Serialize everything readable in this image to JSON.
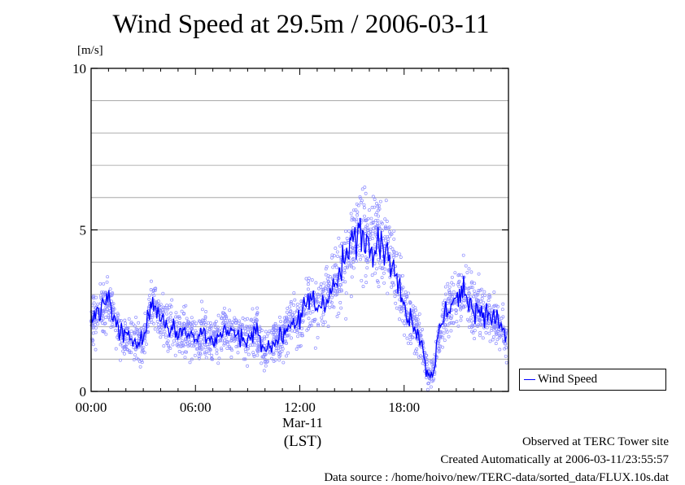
{
  "chart_data": {
    "type": "line",
    "title": "Wind Speed at 29.5m / 2006-03-11",
    "ylabel": "[m/s]",
    "xlabel_date": "Mar-11",
    "xlabel_tz": "(LST)",
    "x_unit": "hours (LST)",
    "ylim": [
      0,
      10
    ],
    "xlim": [
      0,
      24
    ],
    "y_ticks": [
      0,
      5,
      10
    ],
    "x_ticks": [
      {
        "value": 0,
        "label": "00:00"
      },
      {
        "value": 6,
        "label": "06:00"
      },
      {
        "value": 12,
        "label": "12:00"
      },
      {
        "value": 18,
        "label": "18:00"
      }
    ],
    "grid": true,
    "legend_position": "right",
    "series": [
      {
        "name": "Wind Speed",
        "color": "#0000ff",
        "style": "line with scattered raw samples",
        "x": [
          0,
          0.5,
          1,
          1.5,
          2,
          2.5,
          3,
          3.5,
          4,
          4.5,
          5,
          5.5,
          6,
          6.5,
          7,
          7.5,
          8,
          8.5,
          9,
          9.5,
          10,
          10.5,
          11,
          11.5,
          12,
          12.5,
          13,
          13.5,
          14,
          14.5,
          15,
          15.5,
          16,
          16.5,
          17,
          17.5,
          18,
          18.5,
          19,
          19.25,
          19.5,
          19.75,
          20,
          20.5,
          21,
          21.5,
          22,
          22.5,
          23,
          23.5,
          23.9
        ],
        "values": [
          2.2,
          2.4,
          2.9,
          2.0,
          1.6,
          1.7,
          1.6,
          2.8,
          2.3,
          2.0,
          1.8,
          1.9,
          1.6,
          1.9,
          1.6,
          1.8,
          1.9,
          1.7,
          1.6,
          1.9,
          1.2,
          1.6,
          1.7,
          2.2,
          2.1,
          2.9,
          2.6,
          2.9,
          3.2,
          3.9,
          4.6,
          5.0,
          4.6,
          4.8,
          4.4,
          3.6,
          2.6,
          2.2,
          1.6,
          0.7,
          0.5,
          0.8,
          1.8,
          2.6,
          2.9,
          3.0,
          2.6,
          2.5,
          2.3,
          2.1,
          1.6
        ]
      }
    ]
  },
  "legend": {
    "label": "Wind Speed"
  },
  "footer": {
    "line1": "Observed at TERC Tower site",
    "line2": "Created Automatically at 2006-03-11/23:55:57",
    "line3": "Data source : /home/hoivo/new/TERC-data/sorted_data/FLUX.10s.dat"
  }
}
